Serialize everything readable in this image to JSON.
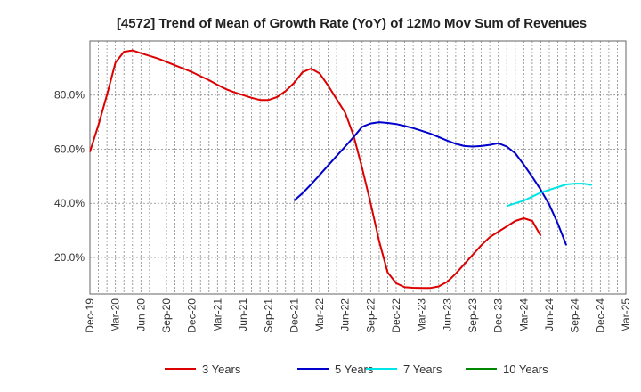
{
  "chart_data": {
    "type": "line",
    "title": "[4572]  Trend of Mean of Growth Rate (YoY) of 12Mo Mov Sum of Revenues",
    "xlabel": "",
    "ylabel": "",
    "x_ticks": [
      "Dec-19",
      "Mar-20",
      "Jun-20",
      "Sep-20",
      "Dec-20",
      "Mar-21",
      "Jun-21",
      "Sep-21",
      "Dec-21",
      "Mar-22",
      "Jun-22",
      "Sep-22",
      "Dec-22",
      "Mar-23",
      "Jun-23",
      "Sep-23",
      "Dec-23",
      "Mar-24",
      "Jun-24",
      "Sep-24",
      "Dec-24",
      "Mar-25"
    ],
    "y_ticks": [
      "20.0%",
      "40.0%",
      "60.0%",
      "80.0%"
    ],
    "y_tick_values": [
      20,
      40,
      60,
      80
    ],
    "ylim": [
      6.5,
      100
    ],
    "x_count": 64,
    "series": [
      {
        "name": "3 Years",
        "color": "#dd0000",
        "start_index": 0,
        "values": [
          59,
          69,
          80,
          92,
          96,
          96.5,
          95.5,
          94.5,
          93.5,
          92.3,
          91,
          89.8,
          88.5,
          87,
          85.5,
          83.8,
          82.2,
          81,
          80,
          79,
          78.2,
          78.2,
          79.3,
          81.5,
          84.5,
          88.5,
          89.8,
          88,
          83.5,
          78.5,
          73.5,
          65,
          53,
          40,
          26,
          14.5,
          10.5,
          9,
          8.8,
          8.7,
          8.7,
          9.3,
          11,
          14,
          17.5,
          21,
          24.5,
          27.5,
          29.5,
          31.5,
          33.5,
          34.5,
          33.5,
          28
        ]
      },
      {
        "name": "5 Years",
        "color": "#0000cc",
        "start_index": 24,
        "values": [
          41,
          43.8,
          47,
          50.5,
          54,
          57.5,
          61,
          64.5,
          68.3,
          69.5,
          70,
          69.7,
          69.3,
          68.6,
          67.8,
          66.8,
          65.8,
          64.5,
          63.2,
          62,
          61.2,
          61,
          61.2,
          61.6,
          62.2,
          61,
          58.5,
          54.3,
          49.8,
          45,
          39.5,
          32.5,
          24.5
        ]
      },
      {
        "name": "7 Years",
        "color": "#00e5e5",
        "start_index": 49,
        "values": [
          39,
          40,
          41,
          42.5,
          44,
          45,
          46,
          47,
          47.3,
          47.3,
          46.8
        ]
      },
      {
        "name": "10 Years",
        "color": "#008800",
        "start_index": 0,
        "values": []
      }
    ]
  }
}
